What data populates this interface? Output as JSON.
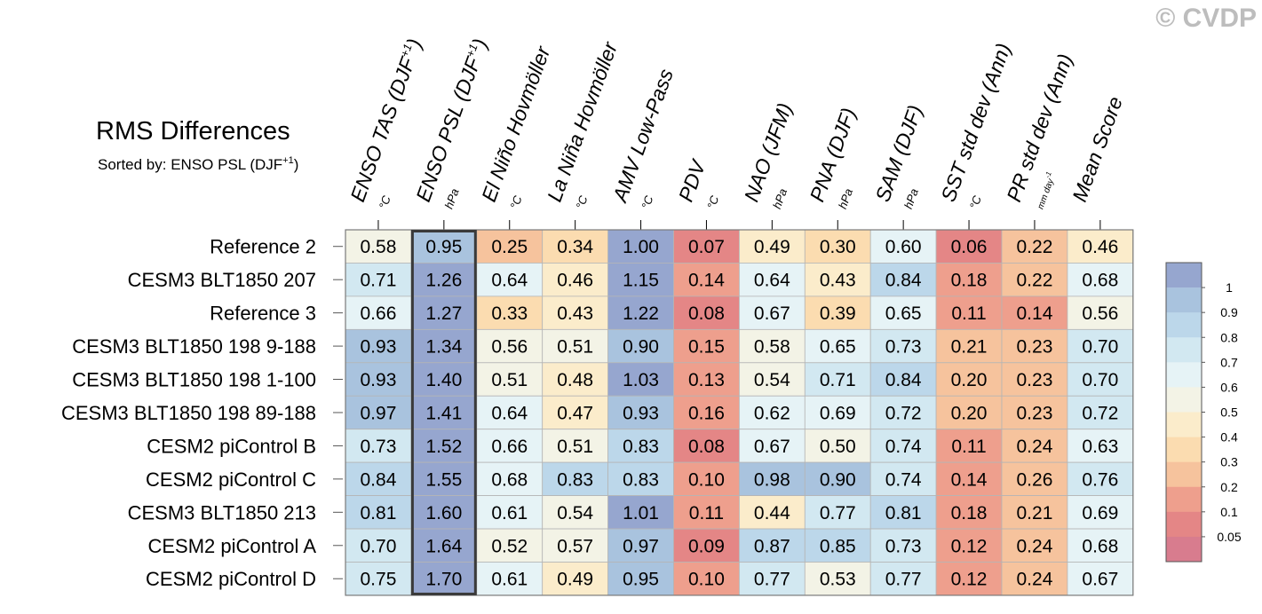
{
  "watermark": "© CVDP",
  "chart_data": {
    "type": "heatmap",
    "title": "RMS Differences",
    "subtitle": {
      "prefix": "Sorted by: ENSO PSL (DJF",
      "sup": "+1",
      "suffix": ")"
    },
    "sorted_column_index": 1,
    "columns": [
      {
        "name": "ENSO TAS (DJF",
        "sup": "+1",
        "close": ")",
        "unit": "°C"
      },
      {
        "name": "ENSO PSL (DJF",
        "sup": "+1",
        "close": ")",
        "unit": "hPa"
      },
      {
        "name": "El Niño Hovmöller",
        "unit": "°C"
      },
      {
        "name": "La Niña Hovmöller",
        "unit": "°C"
      },
      {
        "name": "AMV Low-Pass",
        "unit": "°C"
      },
      {
        "name": "PDV",
        "unit": "°C"
      },
      {
        "name": "NAO (JFM)",
        "unit": "hPa"
      },
      {
        "name": "PNA (DJF)",
        "unit": "hPa"
      },
      {
        "name": "SAM (DJF)",
        "unit": "hPa"
      },
      {
        "name": "SST std dev (Ann)",
        "unit": "°C"
      },
      {
        "name": "PR std dev (Ann)",
        "unit": "mm day",
        "unit_sup": "-1"
      },
      {
        "name": "Mean Score",
        "unit": ""
      }
    ],
    "rows": [
      "Reference 2",
      "CESM3 BLT1850 207",
      "Reference 3",
      "CESM3 BLT1850 198 9-188",
      "CESM3 BLT1850 198 1-100",
      "CESM3 BLT1850 198 89-188",
      "CESM2 piControl B",
      "CESM2 piControl C",
      "CESM3 BLT1850 213",
      "CESM2 piControl A",
      "CESM2 piControl D"
    ],
    "values": [
      [
        "0.58",
        "0.95",
        "0.25",
        "0.34",
        "1.00",
        "0.07",
        "0.49",
        "0.30",
        "0.60",
        "0.06",
        "0.22",
        "0.46"
      ],
      [
        "0.71",
        "1.26",
        "0.64",
        "0.46",
        "1.15",
        "0.14",
        "0.64",
        "0.43",
        "0.84",
        "0.18",
        "0.22",
        "0.68"
      ],
      [
        "0.66",
        "1.27",
        "0.33",
        "0.43",
        "1.22",
        "0.08",
        "0.67",
        "0.39",
        "0.65",
        "0.11",
        "0.14",
        "0.56"
      ],
      [
        "0.93",
        "1.34",
        "0.56",
        "0.51",
        "0.90",
        "0.15",
        "0.58",
        "0.65",
        "0.73",
        "0.21",
        "0.23",
        "0.70"
      ],
      [
        "0.93",
        "1.40",
        "0.51",
        "0.48",
        "1.03",
        "0.13",
        "0.54",
        "0.71",
        "0.84",
        "0.20",
        "0.23",
        "0.70"
      ],
      [
        "0.97",
        "1.41",
        "0.64",
        "0.47",
        "0.93",
        "0.16",
        "0.62",
        "0.69",
        "0.72",
        "0.20",
        "0.23",
        "0.72"
      ],
      [
        "0.73",
        "1.52",
        "0.66",
        "0.51",
        "0.83",
        "0.08",
        "0.67",
        "0.50",
        "0.74",
        "0.11",
        "0.24",
        "0.63"
      ],
      [
        "0.84",
        "1.55",
        "0.68",
        "0.83",
        "0.83",
        "0.10",
        "0.98",
        "0.90",
        "0.74",
        "0.14",
        "0.26",
        "0.76"
      ],
      [
        "0.81",
        "1.60",
        "0.61",
        "0.54",
        "1.01",
        "0.11",
        "0.44",
        "0.77",
        "0.81",
        "0.18",
        "0.21",
        "0.69"
      ],
      [
        "0.70",
        "1.64",
        "0.52",
        "0.57",
        "0.97",
        "0.09",
        "0.87",
        "0.85",
        "0.73",
        "0.12",
        "0.24",
        "0.68"
      ],
      [
        "0.75",
        "1.70",
        "0.61",
        "0.49",
        "0.95",
        "0.10",
        "0.77",
        "0.53",
        "0.77",
        "0.12",
        "0.24",
        "0.67"
      ]
    ],
    "colorbar": {
      "labels": [
        "1",
        "0.9",
        "0.8",
        "0.7",
        "0.6",
        "0.5",
        "0.4",
        "0.3",
        "0.2",
        "0.1",
        "0.05"
      ],
      "colors": [
        "#96a6cf",
        "#a9c3de",
        "#bcd7ea",
        "#d2e8f1",
        "#e6f3f6",
        "#f3f3e6",
        "#fbeccb",
        "#fbdcb0",
        "#f6c39d",
        "#ee9f8d",
        "#e48686",
        "#d87c8e"
      ]
    },
    "legend": "right"
  }
}
